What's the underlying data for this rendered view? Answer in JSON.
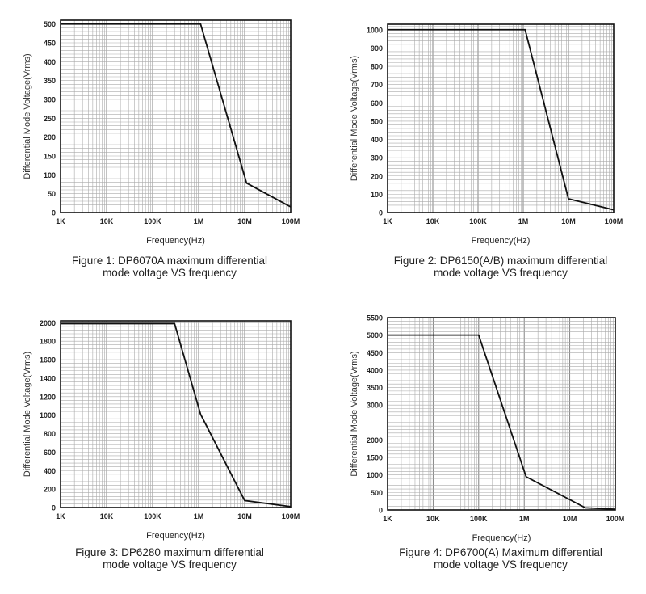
{
  "chart_data": [
    {
      "type": "line",
      "title": "",
      "xlabel": "Frequency(Hz)",
      "ylabel": "Differential Mode Voltage(Vrms)",
      "xscale": "log",
      "xlim": [
        1000,
        100000000
      ],
      "ylim": [
        0,
        510
      ],
      "xticks": [
        "1K",
        "10K",
        "100K",
        "1M",
        "10M",
        "100M"
      ],
      "yticks": [
        0,
        50,
        100,
        150,
        200,
        250,
        300,
        350,
        400,
        450,
        500
      ],
      "series": [
        {
          "name": "DP6070A",
          "x": [
            1000,
            1100000,
            11000000,
            100000000
          ],
          "y": [
            500,
            500,
            78,
            15
          ]
        }
      ],
      "caption": [
        "Figure 1: DP6070A maximum differential",
        "mode voltage VS frequency"
      ]
    },
    {
      "type": "line",
      "title": "",
      "xlabel": "Frequency(Hz)",
      "ylabel": "Differential Mode Voltage(Vrms)",
      "xscale": "log",
      "xlim": [
        1000,
        100000000
      ],
      "ylim": [
        0,
        1030
      ],
      "xticks": [
        "1K",
        "10K",
        "100K",
        "1M",
        "10M",
        "100M"
      ],
      "yticks": [
        0,
        100,
        200,
        300,
        400,
        500,
        600,
        700,
        800,
        900,
        1000
      ],
      "series": [
        {
          "name": "DP6150(A/B)",
          "x": [
            1000,
            1100000,
            10000000,
            100000000
          ],
          "y": [
            1000,
            1000,
            75,
            15
          ]
        }
      ],
      "caption": [
        "Figure 2: DP6150(A/B) maximum differential",
        "mode voltage VS frequency"
      ]
    },
    {
      "type": "line",
      "title": "",
      "xlabel": "Frequency(Hz)",
      "ylabel": "Differential Mode Voltage(Vrms)",
      "xscale": "log",
      "xlim": [
        1000,
        100000000
      ],
      "ylim": [
        0,
        2020
      ],
      "xticks": [
        "1K",
        "10K",
        "100K",
        "1M",
        "10M",
        "100M"
      ],
      "yticks": [
        0,
        200,
        400,
        600,
        800,
        1000,
        1200,
        1400,
        1600,
        1800,
        2000
      ],
      "series": [
        {
          "name": "DP6280",
          "x": [
            1000,
            300000,
            1100000,
            10000000,
            100000000
          ],
          "y": [
            1990,
            1990,
            1010,
            75,
            10
          ]
        }
      ],
      "caption": [
        "Figure 3: DP6280 maximum differential",
        "mode voltage VS frequency"
      ]
    },
    {
      "type": "line",
      "title": "",
      "xlabel": "Frequency(Hz)",
      "ylabel": "Differential Mode Voltage(Vrms)",
      "xscale": "log",
      "xlim": [
        1000,
        100000000
      ],
      "ylim": [
        0,
        5500
      ],
      "xticks": [
        "1K",
        "10K",
        "100K",
        "1M",
        "10M",
        "100M"
      ],
      "yticks": [
        0,
        500,
        1000,
        1500,
        2000,
        3000,
        3500,
        4000,
        4500,
        5000,
        5500
      ],
      "series": [
        {
          "name": "DP6700(A)",
          "x": [
            1000,
            100000,
            1100000,
            22000000,
            100000000
          ],
          "y": [
            5000,
            5000,
            950,
            60,
            20
          ]
        }
      ],
      "caption": [
        "Figure 4: DP6700(A) Maximum differential",
        "mode voltage VS frequency"
      ]
    }
  ]
}
